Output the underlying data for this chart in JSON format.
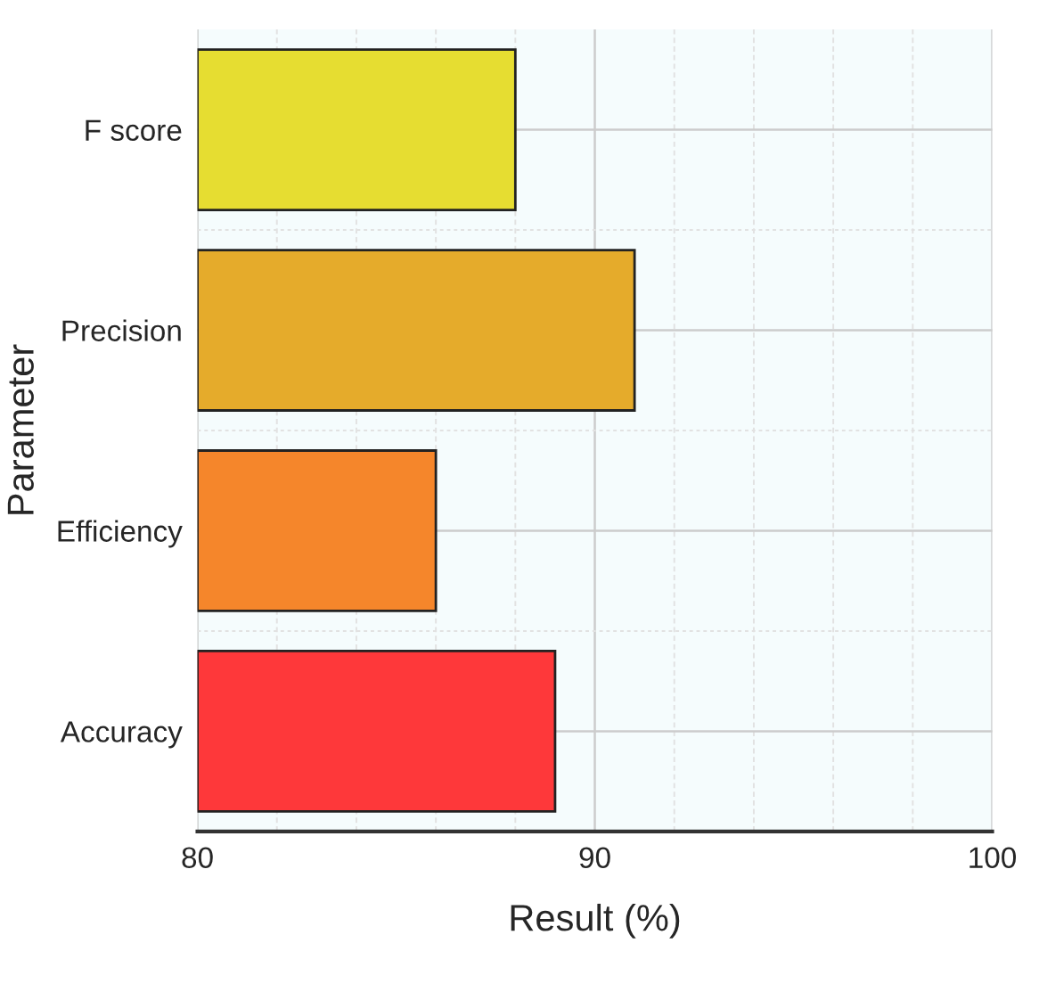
{
  "chart_data": {
    "type": "bar",
    "orientation": "horizontal",
    "xlabel": "Result (%)",
    "ylabel": "Parameter",
    "categories": [
      "F score",
      "Precision",
      "Efficiency",
      "Accuracy"
    ],
    "values": [
      88,
      91,
      86,
      89
    ],
    "colors": [
      "#e6dd31",
      "#e5ab2b",
      "#f5862b",
      "#fe383a"
    ],
    "xlim": [
      80,
      100
    ],
    "xticks": [
      80,
      {
        "value": 82,
        "label": null
      },
      {
        "value": 84,
        "label": null
      },
      {
        "value": 86,
        "label": null
      },
      {
        "value": 88,
        "label": null
      },
      90,
      {
        "value": 92,
        "label": null
      },
      {
        "value": 94,
        "label": null
      },
      {
        "value": 96,
        "label": null
      },
      {
        "value": 98,
        "label": null
      },
      100
    ],
    "grid": true
  }
}
